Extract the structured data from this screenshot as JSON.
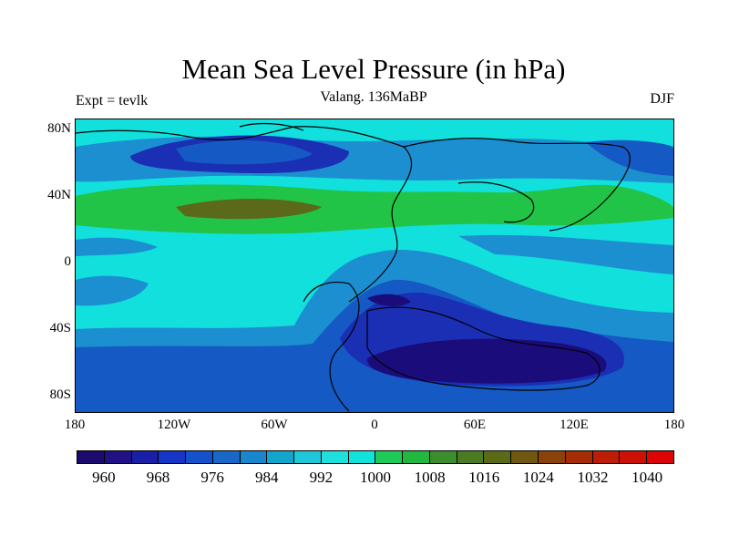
{
  "title": "Mean Sea Level Pressure (in hPa)",
  "subtitle": "Valang. 136MaBP",
  "left_label": "Expt = tevlk",
  "right_label": "DJF",
  "lat_ticks": [
    "80N",
    "40N",
    "0",
    "40S",
    "80S"
  ],
  "lon_ticks": [
    "180",
    "120W",
    "60W",
    "0",
    "60E",
    "120E",
    "180"
  ],
  "colorbar": {
    "colors": [
      "#1c0a6e",
      "#221085",
      "#1a1fa8",
      "#1636c8",
      "#1452cc",
      "#1968c8",
      "#1a86cc",
      "#12a6cc",
      "#1ec8d8",
      "#1ee0dc",
      "#11e2dc",
      "#1fca56",
      "#22b840",
      "#3c8e2c",
      "#4a7b22",
      "#5b6a16",
      "#705810",
      "#8a4208",
      "#a52d05",
      "#bb1e04",
      "#cc1004",
      "#dc0404"
    ],
    "labels": [
      "960",
      "968",
      "976",
      "984",
      "992",
      "1000",
      "1008",
      "1016",
      "1024",
      "1032",
      "1040"
    ]
  },
  "colors": {
    "deep_low": "#1b0c7c",
    "low": "#1a2fb4",
    "mid_low": "#1559c4",
    "moderate": "#1b8fd0",
    "background": "#11e0dc",
    "high_green": "#22c447",
    "high_olive": "#5a6a1a"
  }
}
